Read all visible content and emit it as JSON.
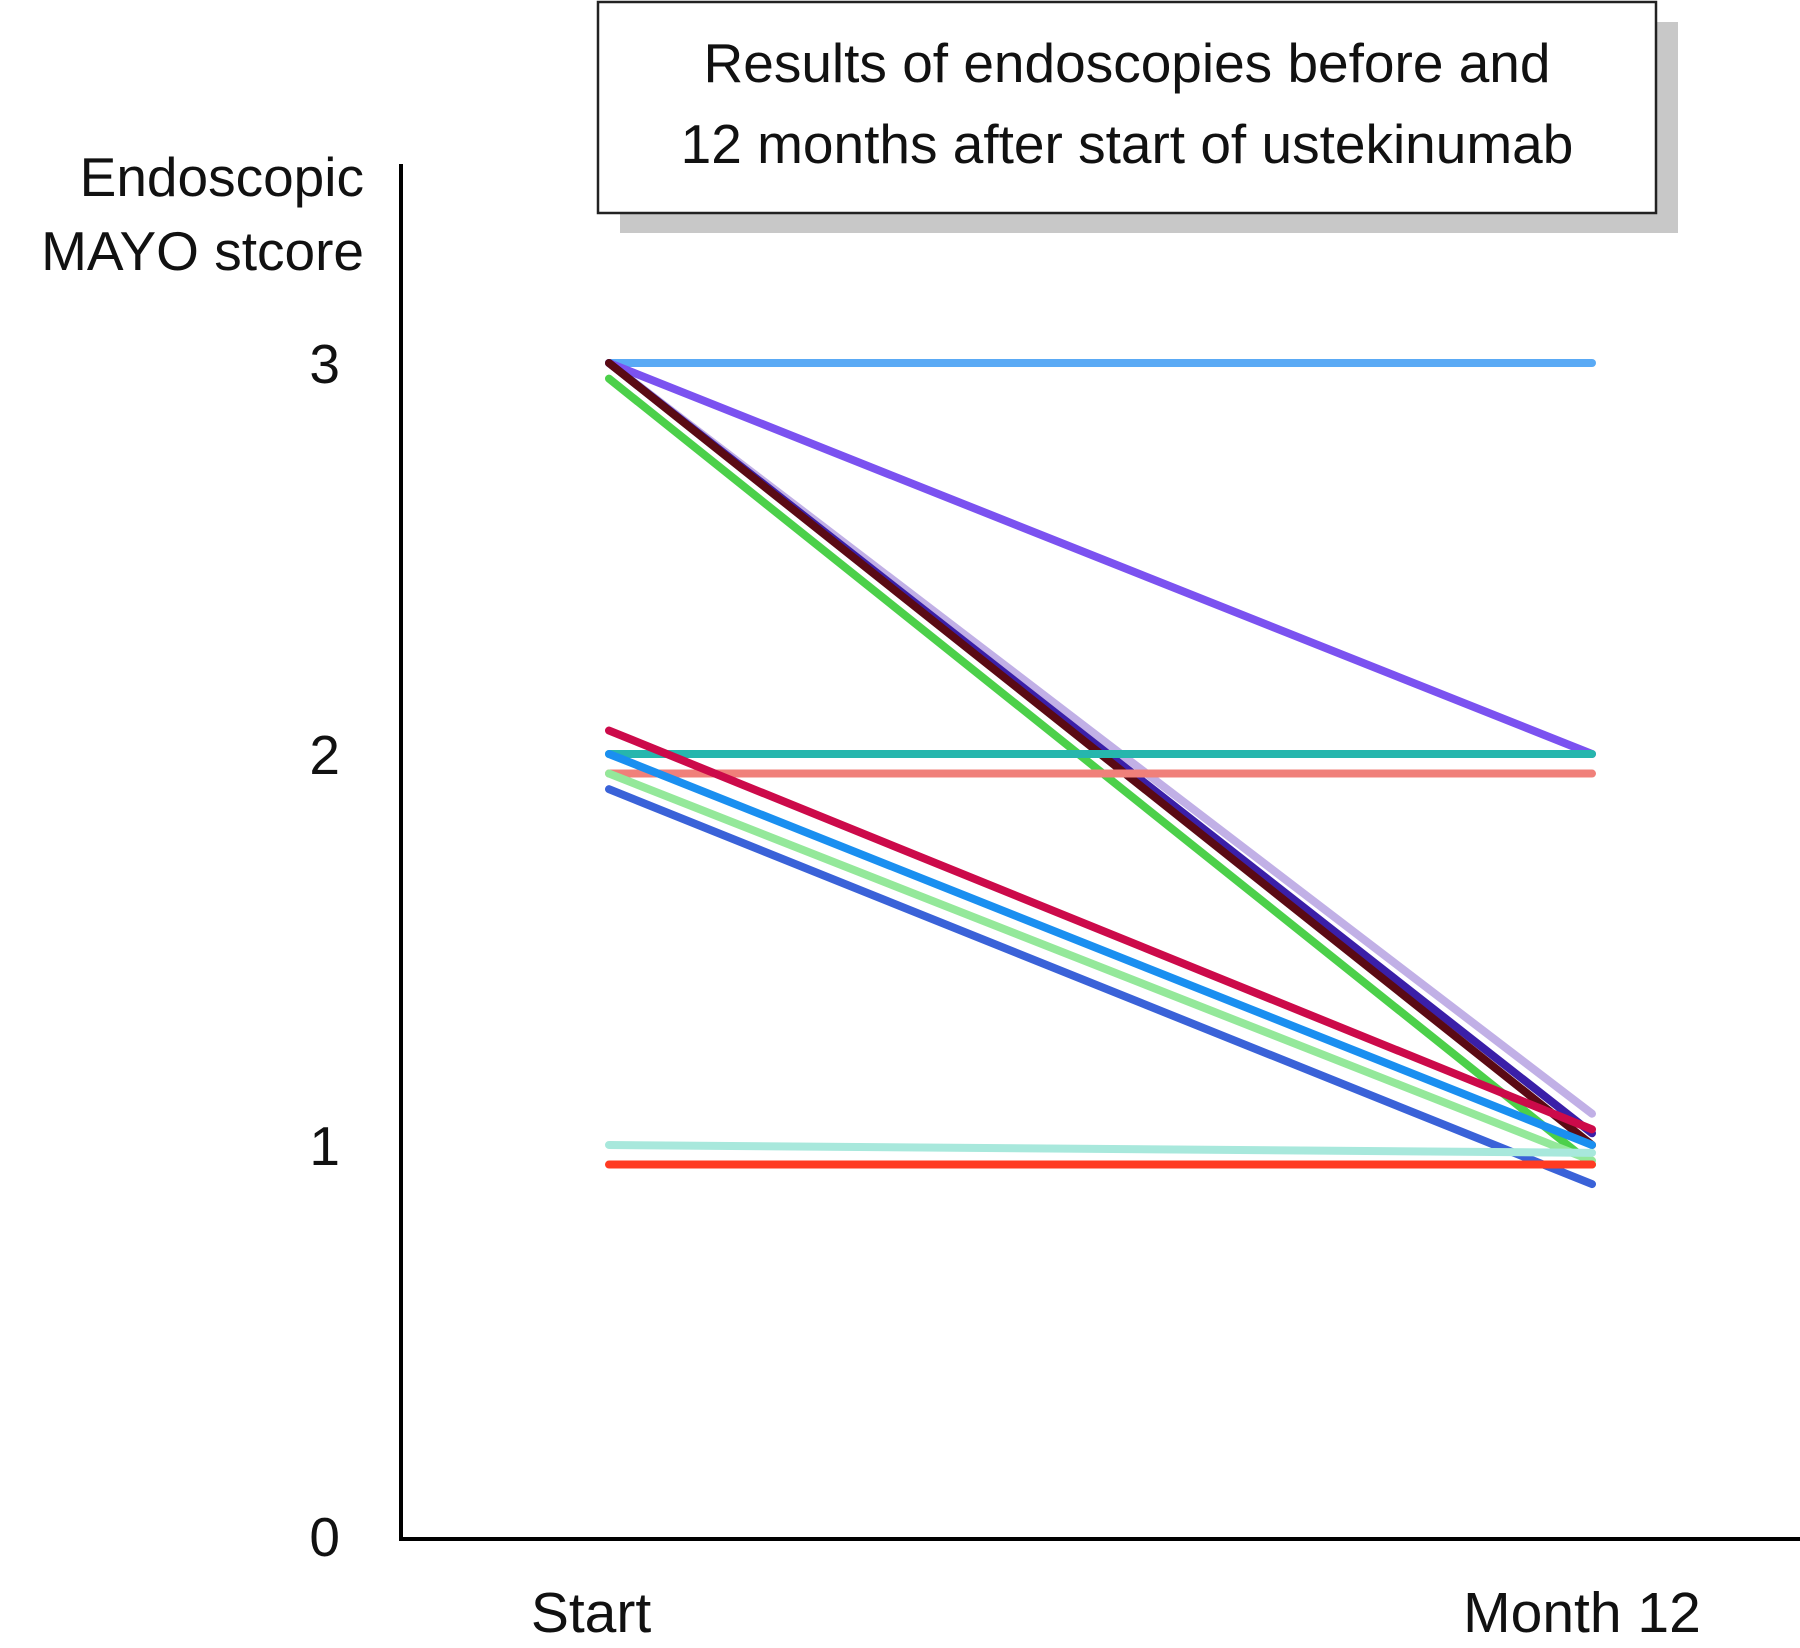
{
  "chart_data": {
    "type": "line",
    "title": "Results of endoscopies before and 12 months after start of ustekinumab",
    "title_lines": [
      "Results of endoscopies before and",
      "12 months after start of ustekinumab"
    ],
    "ylabel": "Endoscopic MAYO stcore",
    "ylabel_lines": [
      "Endoscopic",
      "MAYO stcore"
    ],
    "xlabel": "",
    "categories": [
      "Start",
      "Month 12"
    ],
    "ylim": [
      0,
      3
    ],
    "yticks": [
      0,
      1,
      2,
      3
    ],
    "grid": false,
    "series": [
      {
        "color": "#5aaaf5",
        "values": [
          3.0,
          3.0
        ]
      },
      {
        "color": "#c1b0e6",
        "values": [
          3.0,
          1.08
        ]
      },
      {
        "color": "#7b52f0",
        "values": [
          3.0,
          2.0
        ]
      },
      {
        "color": "#3a1fa8",
        "values": [
          3.0,
          1.03
        ]
      },
      {
        "color": "#5a0a14",
        "values": [
          3.0,
          1.0
        ]
      },
      {
        "color": "#4cd04a",
        "values": [
          2.96,
          0.95
        ]
      },
      {
        "color": "#26b6ad",
        "values": [
          2.0,
          2.0
        ]
      },
      {
        "color": "#f0807a",
        "values": [
          1.95,
          1.95
        ]
      },
      {
        "color": "#cc0a4a",
        "values": [
          2.06,
          1.04
        ]
      },
      {
        "color": "#1a8ff0",
        "values": [
          2.0,
          1.0
        ]
      },
      {
        "color": "#94e89a",
        "values": [
          1.95,
          0.96
        ]
      },
      {
        "color": "#3a62d8",
        "values": [
          1.91,
          0.9
        ]
      },
      {
        "color": "#a8e8dc",
        "values": [
          1.0,
          0.98
        ]
      },
      {
        "color": "#ff3b22",
        "values": [
          0.95,
          0.95
        ]
      }
    ]
  }
}
